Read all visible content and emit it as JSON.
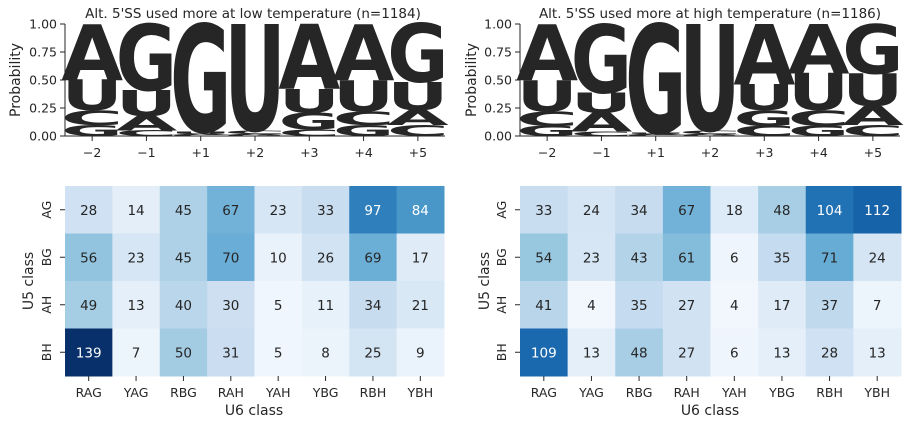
{
  "chart_data": [
    {
      "type": "sequence-logo",
      "title": "Alt. 5'SS used more at low temperature (n=1184)",
      "ylabel": "Probability",
      "ylim": [
        0,
        1
      ],
      "yticks": [
        "0.00",
        "0.25",
        "0.50",
        "0.75",
        "1.00"
      ],
      "positions": [
        "−2",
        "−1",
        "+1",
        "+2",
        "+3",
        "+4",
        "+5"
      ],
      "columns": [
        [
          {
            "l": "G",
            "p": 0.1
          },
          {
            "l": "C",
            "p": 0.13
          },
          {
            "l": "U",
            "p": 0.27
          },
          {
            "l": "A",
            "p": 0.5
          }
        ],
        [
          {
            "l": "C",
            "p": 0.05
          },
          {
            "l": "A",
            "p": 0.13
          },
          {
            "l": "U",
            "p": 0.23
          },
          {
            "l": "G",
            "p": 0.59
          }
        ],
        [
          {
            "l": "C",
            "p": 0.01
          },
          {
            "l": "A",
            "p": 0.01
          },
          {
            "l": "U",
            "p": 0.02
          },
          {
            "l": "G",
            "p": 0.96
          }
        ],
        [
          {
            "l": "G",
            "p": 0.01
          },
          {
            "l": "A",
            "p": 0.01
          },
          {
            "l": "C",
            "p": 0.03
          },
          {
            "l": "U",
            "p": 0.95
          }
        ],
        [
          {
            "l": "C",
            "p": 0.06
          },
          {
            "l": "G",
            "p": 0.15
          },
          {
            "l": "U",
            "p": 0.21
          },
          {
            "l": "A",
            "p": 0.58
          }
        ],
        [
          {
            "l": "G",
            "p": 0.1
          },
          {
            "l": "C",
            "p": 0.12
          },
          {
            "l": "U",
            "p": 0.28
          },
          {
            "l": "A",
            "p": 0.5
          }
        ],
        [
          {
            "l": "C",
            "p": 0.1
          },
          {
            "l": "A",
            "p": 0.13
          },
          {
            "l": "U",
            "p": 0.25
          },
          {
            "l": "G",
            "p": 0.52
          }
        ]
      ]
    },
    {
      "type": "sequence-logo",
      "title": "Alt. 5'SS used more at high temperature (n=1186)",
      "ylabel": "Probability",
      "ylim": [
        0,
        1
      ],
      "yticks": [
        "0.00",
        "0.25",
        "0.50",
        "0.75",
        "1.00"
      ],
      "positions": [
        "−2",
        "−1",
        "+1",
        "+2",
        "+3",
        "+4",
        "+5"
      ],
      "columns": [
        [
          {
            "l": "G",
            "p": 0.09
          },
          {
            "l": "C",
            "p": 0.13
          },
          {
            "l": "U",
            "p": 0.28
          },
          {
            "l": "A",
            "p": 0.5
          }
        ],
        [
          {
            "l": "C",
            "p": 0.04
          },
          {
            "l": "A",
            "p": 0.17
          },
          {
            "l": "U",
            "p": 0.18
          },
          {
            "l": "G",
            "p": 0.61
          }
        ],
        [
          {
            "l": "C",
            "p": 0.01
          },
          {
            "l": "A",
            "p": 0.01
          },
          {
            "l": "U",
            "p": 0.01
          },
          {
            "l": "G",
            "p": 0.97
          }
        ],
        [
          {
            "l": "G",
            "p": 0.01
          },
          {
            "l": "A",
            "p": 0.01
          },
          {
            "l": "C",
            "p": 0.03
          },
          {
            "l": "U",
            "p": 0.95
          }
        ],
        [
          {
            "l": "C",
            "p": 0.09
          },
          {
            "l": "G",
            "p": 0.14
          },
          {
            "l": "U",
            "p": 0.23
          },
          {
            "l": "A",
            "p": 0.54
          }
        ],
        [
          {
            "l": "G",
            "p": 0.09
          },
          {
            "l": "C",
            "p": 0.14
          },
          {
            "l": "U",
            "p": 0.33
          },
          {
            "l": "A",
            "p": 0.44
          }
        ],
        [
          {
            "l": "C",
            "p": 0.1
          },
          {
            "l": "A",
            "p": 0.17
          },
          {
            "l": "U",
            "p": 0.29
          },
          {
            "l": "G",
            "p": 0.44
          }
        ]
      ]
    },
    {
      "type": "heatmap",
      "xlabel": "U6 class",
      "ylabel": "U5 class",
      "x_categories": [
        "RAG",
        "YAG",
        "RBG",
        "RAH",
        "YAH",
        "YBG",
        "RBH",
        "YBH"
      ],
      "y_categories": [
        "AG",
        "BG",
        "AH",
        "BH"
      ],
      "values": [
        [
          28,
          14,
          45,
          67,
          23,
          33,
          97,
          84
        ],
        [
          56,
          23,
          45,
          70,
          10,
          26,
          69,
          17
        ],
        [
          49,
          13,
          40,
          30,
          5,
          11,
          34,
          21
        ],
        [
          139,
          7,
          50,
          31,
          5,
          8,
          25,
          9
        ]
      ],
      "color_range": [
        0,
        139
      ]
    },
    {
      "type": "heatmap",
      "xlabel": "U6 class",
      "ylabel": "U5 class",
      "x_categories": [
        "RAG",
        "YAG",
        "RBG",
        "RAH",
        "YAH",
        "YBG",
        "RBH",
        "YBH"
      ],
      "y_categories": [
        "AG",
        "BG",
        "AH",
        "BH"
      ],
      "values": [
        [
          33,
          24,
          34,
          67,
          18,
          48,
          104,
          112
        ],
        [
          54,
          23,
          43,
          61,
          6,
          35,
          71,
          24
        ],
        [
          41,
          4,
          35,
          27,
          4,
          17,
          37,
          7
        ],
        [
          109,
          13,
          48,
          27,
          6,
          13,
          28,
          13
        ]
      ],
      "color_range": [
        0,
        139
      ]
    }
  ],
  "colors": {
    "A": "#0a9e73",
    "C": "#0571b0",
    "G": "#f0e442",
    "U": "#d55e00",
    "colormap": [
      "#f7fbff",
      "#deebf7",
      "#c6dbef",
      "#9ecae1",
      "#6baed6",
      "#4292c6",
      "#2171b5",
      "#08519c",
      "#08306b"
    ]
  }
}
